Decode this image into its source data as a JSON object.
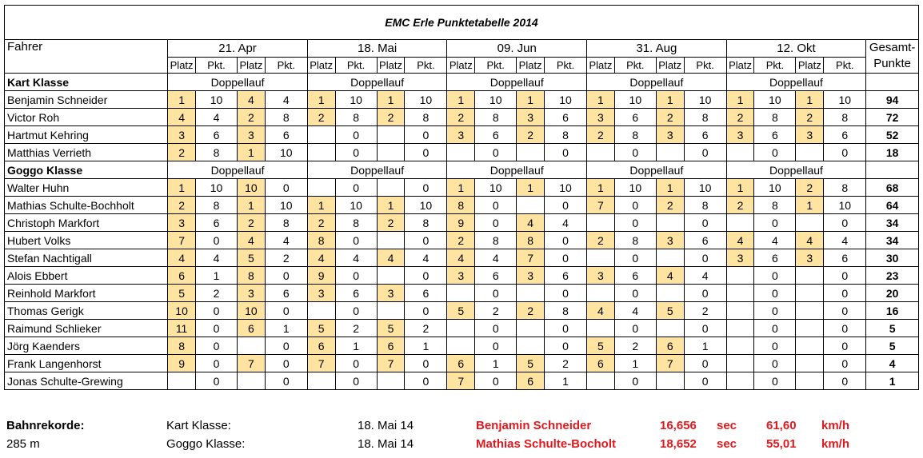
{
  "title": "EMC Erle  Punktetabelle 2014",
  "header": {
    "fahrer": "Fahrer",
    "gesamt_line1": "Gesamt-",
    "gesamt_line2": "Punkte",
    "platz": "Platz",
    "pkt": "Pkt.",
    "doppellauf": "Doppellauf",
    "races": [
      "21. Apr",
      "18. Mai",
      "09. Jun",
      "31. Aug",
      "12. Okt"
    ]
  },
  "groups": [
    {
      "name": "Kart Klasse",
      "rows": [
        {
          "driver": "Benjamin Schneider",
          "cells": [
            [
              "1",
              "10"
            ],
            [
              "4",
              "4"
            ],
            [
              "1",
              "10"
            ],
            [
              "1",
              "10"
            ],
            [
              "1",
              "10"
            ],
            [
              "1",
              "10"
            ],
            [
              "1",
              "10"
            ],
            [
              "1",
              "10"
            ],
            [
              "1",
              "10"
            ],
            [
              "1",
              "10"
            ]
          ],
          "total": "94"
        },
        {
          "driver": "Victor Roh",
          "cells": [
            [
              "4",
              "4"
            ],
            [
              "2",
              "8"
            ],
            [
              "2",
              "8"
            ],
            [
              "2",
              "8"
            ],
            [
              "2",
              "8"
            ],
            [
              "3",
              "6"
            ],
            [
              "3",
              "6"
            ],
            [
              "2",
              "8"
            ],
            [
              "2",
              "8"
            ],
            [
              "2",
              "8"
            ]
          ],
          "total": "72"
        },
        {
          "driver": "Hartmut Kehring",
          "cells": [
            [
              "3",
              "6"
            ],
            [
              "3",
              "6"
            ],
            [
              "",
              "0"
            ],
            [
              "",
              "0"
            ],
            [
              "3",
              "6"
            ],
            [
              "2",
              "8"
            ],
            [
              "2",
              "8"
            ],
            [
              "3",
              "6"
            ],
            [
              "3",
              "6"
            ],
            [
              "3",
              "6"
            ]
          ],
          "total": "52"
        },
        {
          "driver": "Matthias Verrieth",
          "cells": [
            [
              "2",
              "8"
            ],
            [
              "1",
              "10"
            ],
            [
              "",
              "0"
            ],
            [
              "",
              "0"
            ],
            [
              "",
              "0"
            ],
            [
              "",
              "0"
            ],
            [
              "",
              "0"
            ],
            [
              "",
              "0"
            ],
            [
              "",
              "0"
            ],
            [
              "",
              "0"
            ]
          ],
          "total": "18"
        }
      ]
    },
    {
      "name": "Goggo Klasse",
      "rows": [
        {
          "driver": "Walter Huhn",
          "cells": [
            [
              "1",
              "10"
            ],
            [
              "10",
              "0"
            ],
            [
              "",
              "0"
            ],
            [
              "",
              "0"
            ],
            [
              "1",
              "10"
            ],
            [
              "1",
              "10"
            ],
            [
              "1",
              "10"
            ],
            [
              "1",
              "10"
            ],
            [
              "1",
              "10"
            ],
            [
              "2",
              "8"
            ]
          ],
          "total": "68"
        },
        {
          "driver": "Mathias Schulte-Bochholt",
          "cells": [
            [
              "2",
              "8"
            ],
            [
              "1",
              "10"
            ],
            [
              "1",
              "10"
            ],
            [
              "1",
              "10"
            ],
            [
              "8",
              "0"
            ],
            [
              "",
              "0"
            ],
            [
              "7",
              "0"
            ],
            [
              "2",
              "8"
            ],
            [
              "2",
              "8"
            ],
            [
              "1",
              "10"
            ]
          ],
          "total": "64"
        },
        {
          "driver": "Christoph Markfort",
          "cells": [
            [
              "3",
              "6"
            ],
            [
              "2",
              "8"
            ],
            [
              "2",
              "8"
            ],
            [
              "2",
              "8"
            ],
            [
              "9",
              "0"
            ],
            [
              "4",
              "4"
            ],
            [
              "",
              "0"
            ],
            [
              "",
              "0"
            ],
            [
              "",
              "0"
            ],
            [
              "",
              "0"
            ]
          ],
          "total": "34"
        },
        {
          "driver": "Hubert Volks",
          "cells": [
            [
              "7",
              "0"
            ],
            [
              "4",
              "4"
            ],
            [
              "8",
              "0"
            ],
            [
              "",
              "0"
            ],
            [
              "2",
              "8"
            ],
            [
              "8",
              "0"
            ],
            [
              "2",
              "8"
            ],
            [
              "3",
              "6"
            ],
            [
              "4",
              "4"
            ],
            [
              "4",
              "4"
            ]
          ],
          "total": "34"
        },
        {
          "driver": "Stefan Nachtigall",
          "cells": [
            [
              "4",
              "4"
            ],
            [
              "5",
              "2"
            ],
            [
              "4",
              "4"
            ],
            [
              "4",
              "4"
            ],
            [
              "4",
              "4"
            ],
            [
              "7",
              "0"
            ],
            [
              "",
              "0"
            ],
            [
              "",
              "0"
            ],
            [
              "3",
              "6"
            ],
            [
              "3",
              "6"
            ]
          ],
          "total": "30"
        },
        {
          "driver": "Alois Ebbert",
          "cells": [
            [
              "6",
              "1"
            ],
            [
              "8",
              "0"
            ],
            [
              "9",
              "0"
            ],
            [
              "",
              "0"
            ],
            [
              "3",
              "6"
            ],
            [
              "3",
              "6"
            ],
            [
              "3",
              "6"
            ],
            [
              "4",
              "4"
            ],
            [
              "",
              "0"
            ],
            [
              "",
              "0"
            ]
          ],
          "total": "23"
        },
        {
          "driver": "Reinhold Markfort",
          "cells": [
            [
              "5",
              "2"
            ],
            [
              "3",
              "6"
            ],
            [
              "3",
              "6"
            ],
            [
              "3",
              "6"
            ],
            [
              "",
              "0"
            ],
            [
              "",
              "0"
            ],
            [
              "",
              "0"
            ],
            [
              "",
              "0"
            ],
            [
              "",
              "0"
            ],
            [
              "",
              "0"
            ]
          ],
          "total": "20"
        },
        {
          "driver": "Thomas Gerigk",
          "cells": [
            [
              "10",
              "0"
            ],
            [
              "10",
              "0"
            ],
            [
              "",
              "0"
            ],
            [
              "",
              "0"
            ],
            [
              "5",
              "2"
            ],
            [
              "2",
              "8"
            ],
            [
              "4",
              "4"
            ],
            [
              "5",
              "2"
            ],
            [
              "",
              "0"
            ],
            [
              "",
              "0"
            ]
          ],
          "total": "16"
        },
        {
          "driver": "Raimund Schlieker",
          "cells": [
            [
              "11",
              "0"
            ],
            [
              "6",
              "1"
            ],
            [
              "5",
              "2"
            ],
            [
              "5",
              "2"
            ],
            [
              "",
              "0"
            ],
            [
              "",
              "0"
            ],
            [
              "",
              "0"
            ],
            [
              "",
              "0"
            ],
            [
              "",
              "0"
            ],
            [
              "",
              "0"
            ]
          ],
          "total": "5"
        },
        {
          "driver": "Jörg Kaenders",
          "cells": [
            [
              "8",
              "0"
            ],
            [
              "",
              "0"
            ],
            [
              "6",
              "1"
            ],
            [
              "6",
              "1"
            ],
            [
              "",
              "0"
            ],
            [
              "",
              "0"
            ],
            [
              "5",
              "2"
            ],
            [
              "6",
              "1"
            ],
            [
              "",
              "0"
            ],
            [
              "",
              "0"
            ]
          ],
          "total": "5"
        },
        {
          "driver": "Frank Langenhorst",
          "cells": [
            [
              "9",
              "0"
            ],
            [
              "7",
              "0"
            ],
            [
              "7",
              "0"
            ],
            [
              "7",
              "0"
            ],
            [
              "6",
              "1"
            ],
            [
              "5",
              "2"
            ],
            [
              "6",
              "1"
            ],
            [
              "7",
              "0"
            ],
            [
              "",
              "0"
            ],
            [
              "",
              "0"
            ]
          ],
          "total": "4"
        },
        {
          "driver": "Jonas Schulte-Grewing",
          "cells": [
            [
              "",
              "0"
            ],
            [
              "",
              "0"
            ],
            [
              "",
              "0"
            ],
            [
              "",
              "0"
            ],
            [
              "7",
              "0"
            ],
            [
              "6",
              "1"
            ],
            [
              "",
              "0"
            ],
            [
              "",
              "0"
            ],
            [
              "",
              "0"
            ],
            [
              "",
              "0"
            ]
          ],
          "total": "1"
        }
      ]
    }
  ],
  "footer": {
    "label": "Bahnrekorde:",
    "distance": "285 m",
    "records": [
      {
        "klasse": "Kart Klasse:",
        "date": "18. Mai 14",
        "driver": "Benjamin Schneider",
        "time": "16,656",
        "time_unit": "sec",
        "speed": "61,60",
        "speed_unit": "km/h"
      },
      {
        "klasse": "Goggo Klasse:",
        "date": "18. Mai 14",
        "driver": "Mathias Schulte-Bocholt",
        "time": "18,652",
        "time_unit": "sec",
        "speed": "55,01",
        "speed_unit": "km/h"
      }
    ]
  },
  "colors": {
    "highlight": "#ffe3a0",
    "record_red": "#e0191f"
  }
}
